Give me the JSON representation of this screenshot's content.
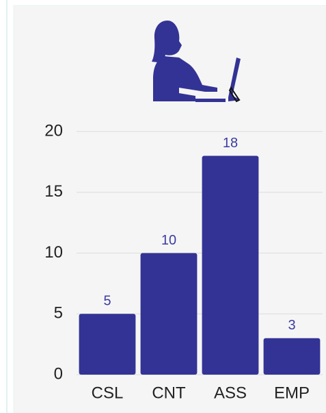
{
  "chart_data": {
    "type": "bar",
    "categories": [
      "CSL",
      "CNT",
      "ASS",
      "EMP"
    ],
    "values": [
      5,
      10,
      18,
      3
    ],
    "color": "#333395",
    "ylim": [
      0,
      20
    ],
    "yticks": [
      0,
      5,
      10,
      15,
      20
    ],
    "grid": true
  }
}
